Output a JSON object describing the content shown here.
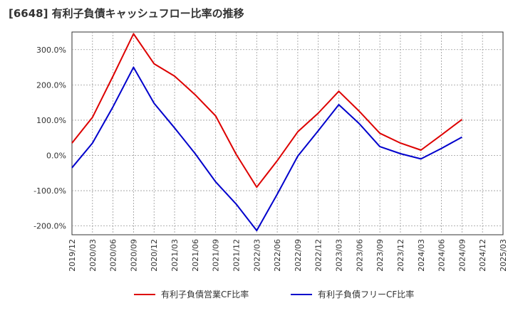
{
  "title": "[6648]  有利子負債キャッシュフロー比率の推移",
  "chart_data": {
    "type": "line",
    "x": [
      "2019/12",
      "2020/03",
      "2020/06",
      "2020/09",
      "2020/12",
      "2021/03",
      "2021/06",
      "2021/09",
      "2021/12",
      "2022/03",
      "2022/06",
      "2022/09",
      "2022/12",
      "2023/03",
      "2023/06",
      "2023/09",
      "2023/12",
      "2024/03",
      "2024/06",
      "2024/09",
      "2024/12",
      "2025/03"
    ],
    "y_ticks": [
      "300.0%",
      "200.0%",
      "100.0%",
      "0.0%",
      "-100.0%",
      "-200.0%"
    ],
    "y_tick_values": [
      300,
      200,
      100,
      0,
      -100,
      -200
    ],
    "ylim": [
      -225,
      350
    ],
    "grid": true,
    "legend_position": "bottom",
    "series": [
      {
        "name": "有利子負債営業CF比率",
        "color": "#dd0000",
        "values": [
          35,
          108,
          225,
          345,
          260,
          225,
          172,
          112,
          3,
          -90,
          -15,
          67,
          120,
          182,
          125,
          63,
          35,
          15,
          58,
          102,
          null,
          null
        ]
      },
      {
        "name": "有利子負債フリーCF比率",
        "color": "#0000cc",
        "values": [
          -35,
          35,
          138,
          250,
          148,
          78,
          5,
          -75,
          -138,
          -213,
          -110,
          -2,
          70,
          144,
          90,
          25,
          5,
          -10,
          20,
          52,
          null,
          null
        ]
      }
    ]
  }
}
